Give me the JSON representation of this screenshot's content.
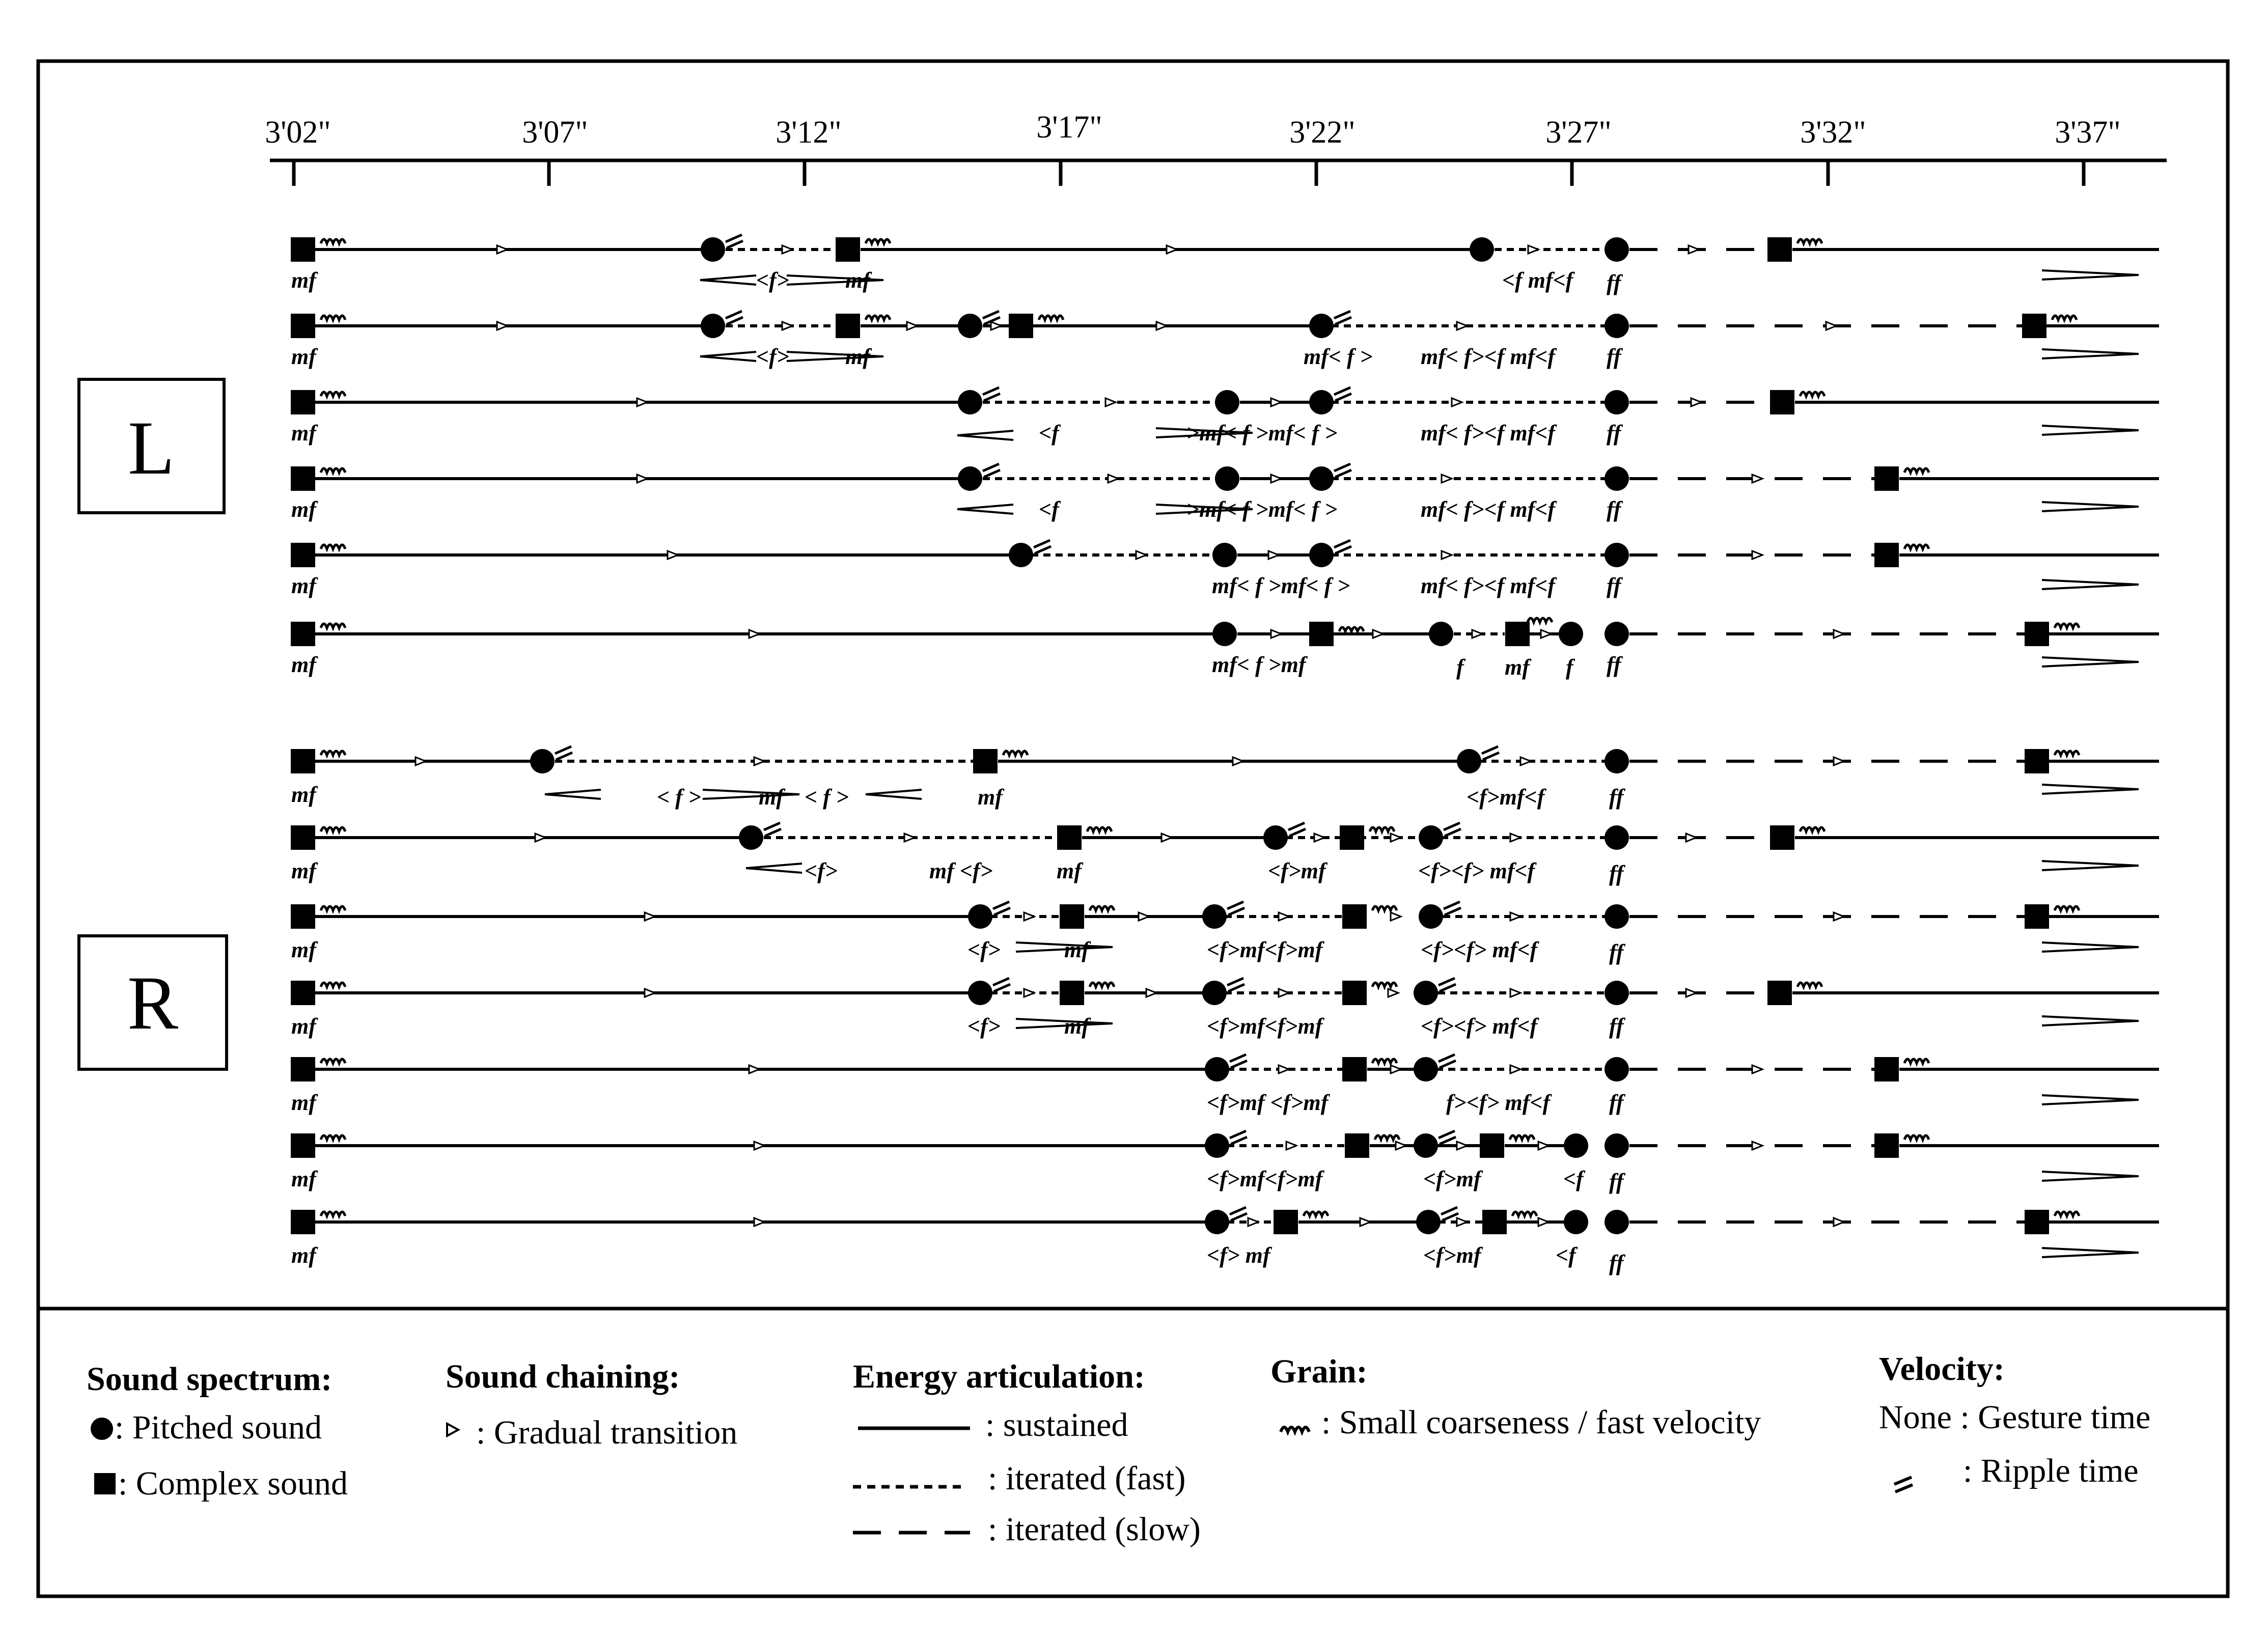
{
  "timeline": {
    "ticks": [
      "3'02\"",
      "3'07\"",
      "3'12\"",
      "3'17\"",
      "3'22\"",
      "3'27\"",
      "3'32\"",
      "3'37\""
    ]
  },
  "sections": {
    "left_label": "L",
    "right_label": "R"
  },
  "tracks": [
    {
      "row": 1,
      "dynamics": [
        "mf",
        "<f>",
        "mf",
        "<f mf<f",
        "ff"
      ]
    },
    {
      "row": 2,
      "dynamics": [
        "mf",
        "<f>",
        "mf",
        "mf< f >",
        "mf< f><f mf<f",
        "ff"
      ]
    },
    {
      "row": 3,
      "dynamics": [
        "mf",
        "<f",
        ">mf< f >mf< f >",
        "mf< f><f mf<f",
        "ff"
      ]
    },
    {
      "row": 4,
      "dynamics": [
        "mf",
        "<f",
        ">mf< f >mf< f >",
        "mf< f><f mf<f",
        "ff"
      ]
    },
    {
      "row": 5,
      "dynamics": [
        "mf",
        "mf< f >mf< f >",
        "mf< f><f mf<f",
        "ff"
      ]
    },
    {
      "row": 6,
      "dynamics": [
        "mf",
        "mf< f >mf",
        "f",
        "mf",
        "f",
        "ff"
      ]
    },
    {
      "row": 7,
      "dynamics": [
        "mf",
        "< f >",
        "mf",
        "< f >",
        "mf",
        "<f>mf<f",
        "ff"
      ]
    },
    {
      "row": 8,
      "dynamics": [
        "mf",
        "<f>",
        "mf <f>",
        "mf",
        "<f>mf",
        "<f><f> mf<f",
        "ff"
      ]
    },
    {
      "row": 9,
      "dynamics": [
        "mf",
        "<f>",
        "mf",
        "<f>mf<f>mf",
        "<f><f> mf<f",
        "ff"
      ]
    },
    {
      "row": 10,
      "dynamics": [
        "mf",
        "<f>",
        "mf",
        "<f>mf<f>mf",
        "<f><f> mf<f",
        "ff"
      ]
    },
    {
      "row": 11,
      "dynamics": [
        "mf",
        "<f>mf <f>mf",
        "f><f> mf<f",
        "ff"
      ]
    },
    {
      "row": 12,
      "dynamics": [
        "mf",
        "<f>mf<f>mf",
        "<f>mf",
        "<f",
        "ff"
      ]
    },
    {
      "row": 13,
      "dynamics": [
        "mf",
        "<f> mf",
        "<f>mf",
        "<f",
        "ff"
      ]
    }
  ],
  "legend": {
    "spectrum": {
      "title": "Sound spectrum:",
      "pitched": ":  Pitched sound",
      "complex": ": Complex sound"
    },
    "chaining": {
      "title": "Sound chaining:",
      "gradual": ": Gradual transition"
    },
    "energy": {
      "title": "Energy articulation:",
      "sustained": ": sustained",
      "iterated_fast": ": iterated (fast)",
      "iterated_slow": ": iterated (slow)"
    },
    "grain": {
      "title": "Grain:",
      "small": ": Small coarseness / fast velocity"
    },
    "velocity": {
      "title": "Velocity:",
      "none": "None : Gesture time",
      "ripple": ": Ripple time"
    }
  }
}
